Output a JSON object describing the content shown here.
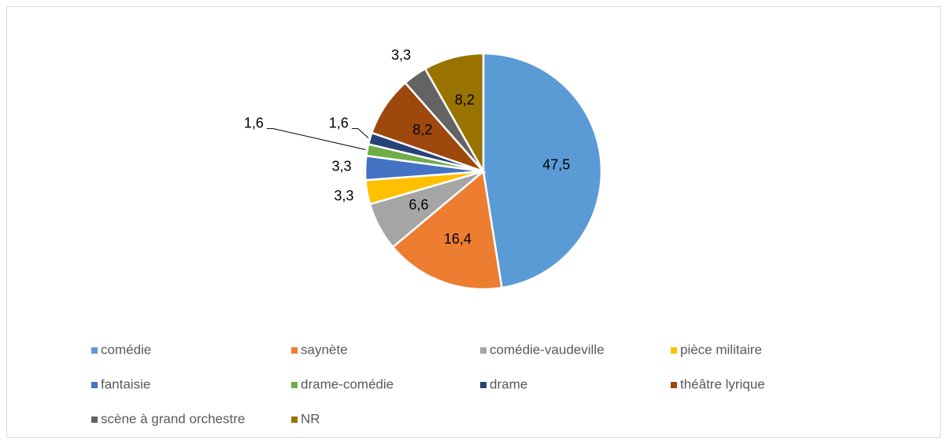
{
  "chart_data": {
    "type": "pie",
    "categories": [
      "comédie",
      "saynète",
      "comédie-vaudeville",
      "pièce militaire",
      "fantaisie",
      "drame-comédie",
      "drame",
      "théâtre lyrique",
      "scène à grand orchestre",
      "NR"
    ],
    "values": [
      47.5,
      16.4,
      6.6,
      3.3,
      3.3,
      1.6,
      1.6,
      8.2,
      3.3,
      8.2
    ],
    "value_labels": [
      "47,5",
      "16,4",
      "6,6",
      "3,3",
      "3,3",
      "1,6",
      "1,6",
      "8,2",
      "3,3",
      "8,2"
    ],
    "colors": [
      "#5b9bd5",
      "#ed7d31",
      "#a5a5a5",
      "#ffc000",
      "#4472c4",
      "#70ad47",
      "#264478",
      "#9e480e",
      "#636363",
      "#997300"
    ],
    "legend": "bottom"
  }
}
